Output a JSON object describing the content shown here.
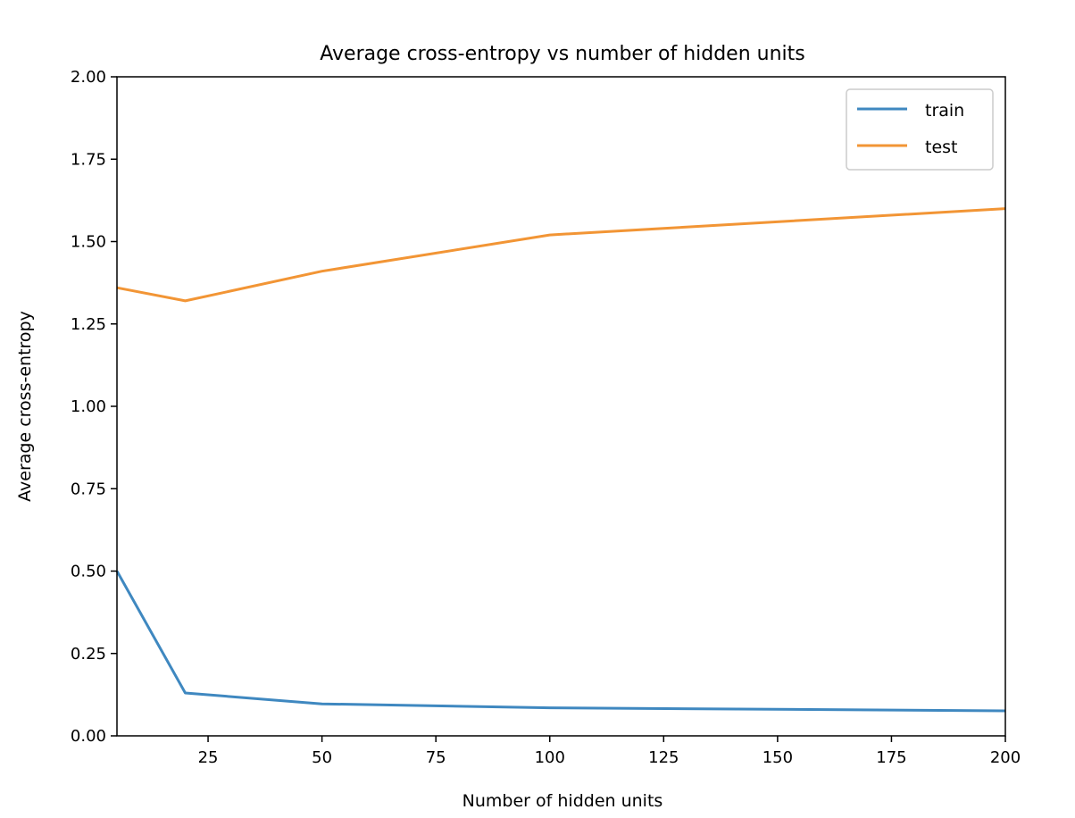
{
  "chart_data": {
    "type": "line",
    "title": "Average cross-entropy vs number of hidden units",
    "xlabel": "Number of hidden units",
    "ylabel": "Average cross-entropy",
    "xlim": [
      5,
      200
    ],
    "ylim": [
      0,
      2.0
    ],
    "xticks": [
      25,
      50,
      75,
      100,
      125,
      150,
      175,
      200
    ],
    "yticks": [
      0.0,
      0.25,
      0.5,
      0.75,
      1.0,
      1.25,
      1.5,
      1.75,
      2.0
    ],
    "xtick_labels": [
      "25",
      "50",
      "75",
      "100",
      "125",
      "150",
      "175",
      "200"
    ],
    "ytick_labels": [
      "0.00",
      "0.25",
      "0.50",
      "0.75",
      "1.00",
      "1.25",
      "1.50",
      "1.75",
      "2.00"
    ],
    "grid": false,
    "legend_position": "top-right",
    "series": [
      {
        "name": "train",
        "color": "#3f88c0",
        "x": [
          5,
          20,
          50,
          100,
          200
        ],
        "y": [
          0.5,
          0.13,
          0.097,
          0.085,
          0.076
        ]
      },
      {
        "name": "test",
        "color": "#f29535",
        "x": [
          5,
          20,
          50,
          100,
          200
        ],
        "y": [
          1.36,
          1.32,
          1.41,
          1.52,
          1.6
        ]
      }
    ]
  }
}
